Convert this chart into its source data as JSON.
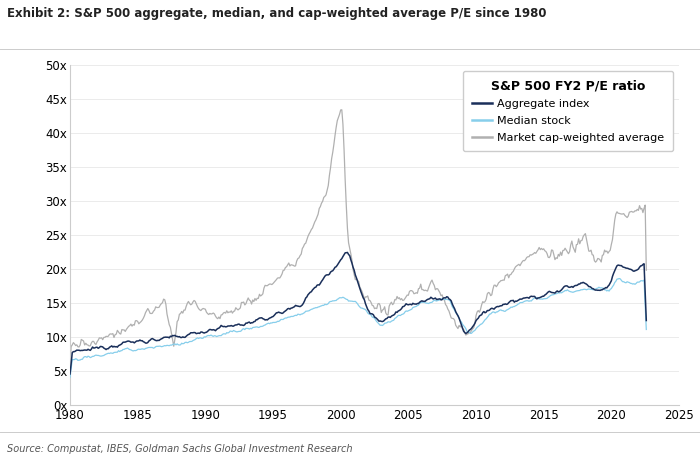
{
  "title": "Exhibit 2: S&P 500 aggregate, median, and cap-weighted average P/E since 1980",
  "source": "Source: Compustat, IBES, Goldman Sachs Global Investment Research",
  "legend_title": "S&P 500 FY2 P/E ratio",
  "legend_entries": [
    "Aggregate index",
    "Median stock",
    "Market cap-weighted average"
  ],
  "colors": {
    "aggregate": "#1a2f5a",
    "median": "#87ceeb",
    "market_cap": "#b0b0b0"
  },
  "xlim": [
    1980,
    2025
  ],
  "ylim": [
    0,
    50
  ],
  "yticks": [
    0,
    5,
    10,
    15,
    20,
    25,
    30,
    35,
    40,
    45,
    50
  ],
  "xticks": [
    1980,
    1985,
    1990,
    1995,
    2000,
    2005,
    2010,
    2015,
    2020,
    2025
  ],
  "background_color": "#ffffff",
  "plot_bg_color": "#ffffff"
}
